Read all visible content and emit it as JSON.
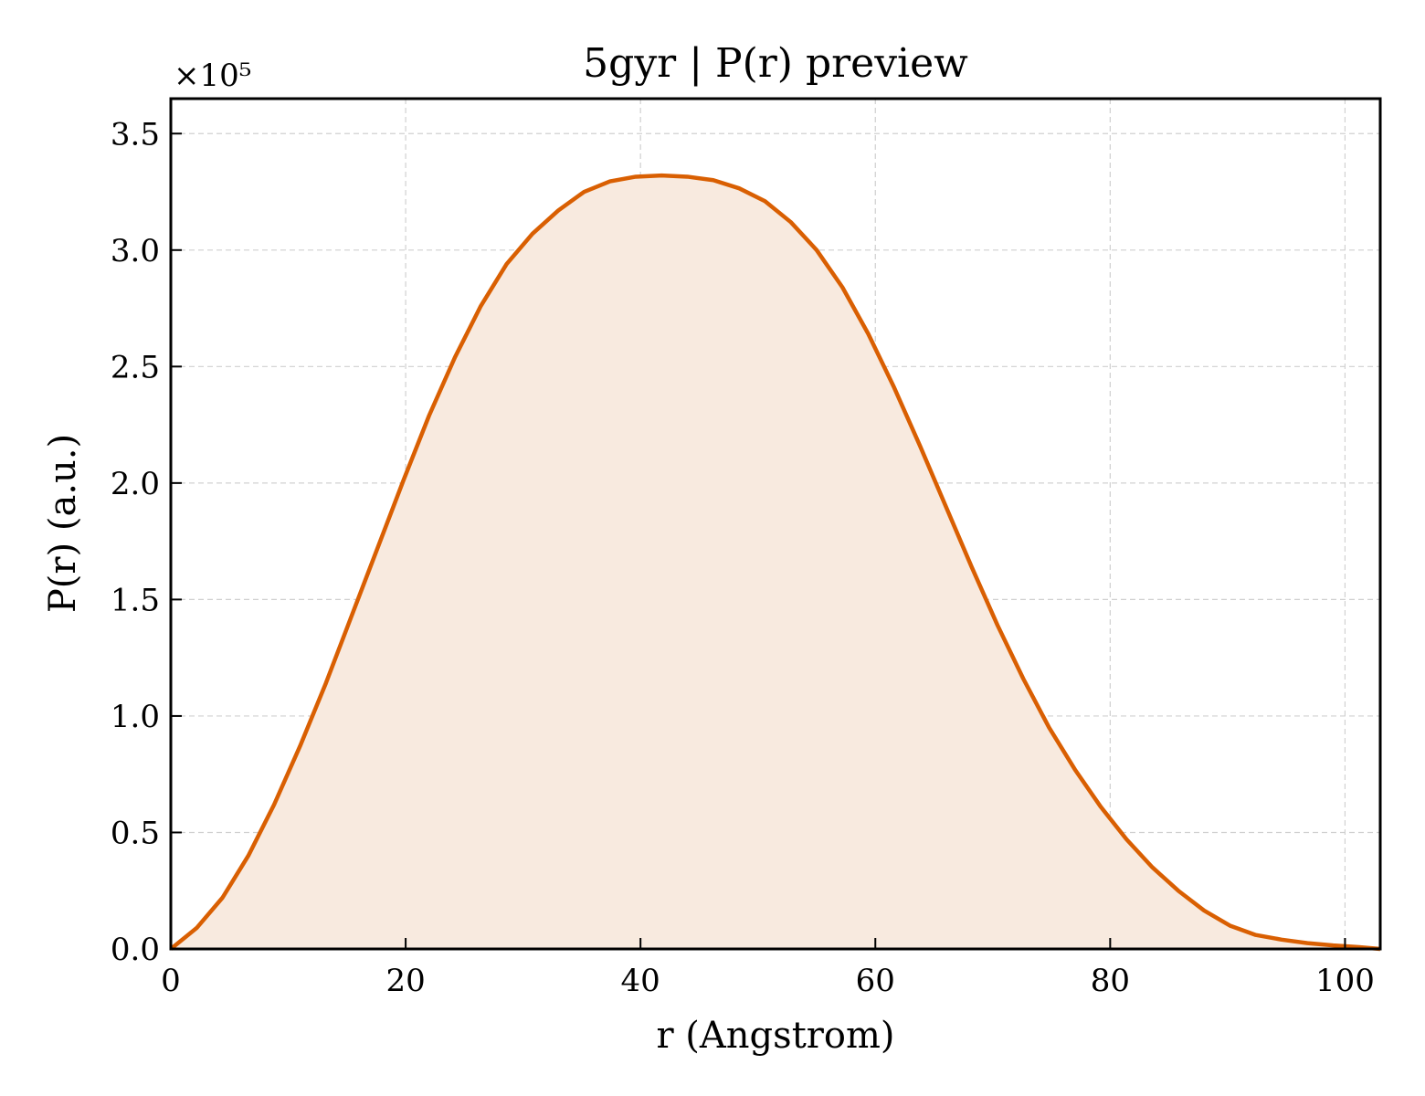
{
  "chart_data": {
    "type": "area",
    "title": "5gyr | P(r) preview",
    "xlabel": "r (Angstrom)",
    "ylabel": "P(r) (a.u.)",
    "y_offset_label": "×10⁵",
    "xlim": [
      0,
      103
    ],
    "ylim": [
      0,
      3.65
    ],
    "xticks": [
      0,
      20,
      40,
      60,
      80,
      100
    ],
    "xtick_labels": [
      "0",
      "20",
      "40",
      "60",
      "80",
      "100"
    ],
    "yticks": [
      0,
      0.5,
      1.0,
      1.5,
      2.0,
      2.5,
      3.0,
      3.5
    ],
    "ytick_labels": [
      "0.0",
      "0.5",
      "1.0",
      "1.5",
      "2.0",
      "2.5",
      "3.0",
      "3.5"
    ],
    "grid": true,
    "line_color": "#d95f02",
    "fill_color": "#f8eadf",
    "x": [
      0,
      2.2,
      4.4,
      6.6,
      8.8,
      11.0,
      13.2,
      15.4,
      17.6,
      19.8,
      22.0,
      24.2,
      26.4,
      28.6,
      30.8,
      33.0,
      35.2,
      37.4,
      39.6,
      41.8,
      44.0,
      46.2,
      48.4,
      50.6,
      52.8,
      55.0,
      57.2,
      59.4,
      61.6,
      63.8,
      66.0,
      68.2,
      70.4,
      72.6,
      74.8,
      77.0,
      79.2,
      81.4,
      83.6,
      85.8,
      88.0,
      90.2,
      92.4,
      94.6,
      96.8,
      99.0,
      101.2,
      103.0
    ],
    "y": [
      0.0,
      0.09,
      0.22,
      0.4,
      0.62,
      0.87,
      1.14,
      1.43,
      1.72,
      2.01,
      2.29,
      2.54,
      2.76,
      2.94,
      3.07,
      3.17,
      3.25,
      3.295,
      3.315,
      3.32,
      3.315,
      3.3,
      3.265,
      3.21,
      3.12,
      3.0,
      2.84,
      2.64,
      2.41,
      2.16,
      1.9,
      1.64,
      1.39,
      1.16,
      0.95,
      0.77,
      0.61,
      0.47,
      0.35,
      0.25,
      0.165,
      0.1,
      0.06,
      0.04,
      0.025,
      0.015,
      0.008,
      0.0
    ]
  }
}
